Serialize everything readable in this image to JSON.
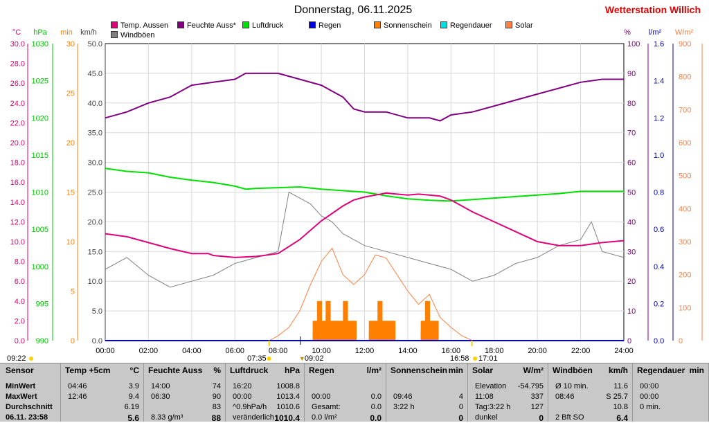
{
  "header": {
    "title": "Donnerstag, 06.11.2025",
    "station": "Wetterstation Willich"
  },
  "legend": [
    {
      "label": "Temp. Aussen",
      "color": "#e0007a"
    },
    {
      "label": "Feuchte Auss*",
      "color": "#800080"
    },
    {
      "label": "Luftdruck",
      "color": "#00e000"
    },
    {
      "label": "Regen",
      "color": "#0000e0"
    },
    {
      "label": "Sonnenschein",
      "color": "#ff8000"
    },
    {
      "label": "Regendauer",
      "color": "#00e0e0"
    },
    {
      "label": "Solar",
      "color": "#ff8040"
    },
    {
      "label": "Windböen",
      "color": "#808080"
    }
  ],
  "axes_units": {
    "temp": "°C",
    "pressure": "hPa",
    "sun": "min",
    "wind": "km/h",
    "humidity": "%",
    "rain": "l/m²",
    "solar": "W/m²"
  },
  "axis_ticks": {
    "temp": [
      "30.0",
      "28.0",
      "26.0",
      "24.0",
      "22.0",
      "20.0",
      "18.0",
      "16.0",
      "14.0",
      "12.0",
      "10.0",
      "8.0",
      "6.0",
      "4.0",
      "2.0",
      "0.0"
    ],
    "pressure": [
      "1030",
      "1025",
      "1020",
      "1015",
      "1010",
      "1005",
      "1000",
      "995",
      "990"
    ],
    "sun": [
      "30",
      "25",
      "20",
      "15",
      "10",
      "5",
      "0"
    ],
    "wind": [
      "50.0",
      "45.0",
      "40.0",
      "35.0",
      "30.0",
      "25.0",
      "20.0",
      "15.0",
      "10.0",
      "5.0",
      "0.0"
    ],
    "humidity": [
      "100",
      "90",
      "80",
      "70",
      "60",
      "50",
      "40",
      "30",
      "20",
      "10",
      "0"
    ],
    "rain": [
      "1.6",
      "1.4",
      "1.2",
      "1.0",
      "0.8",
      "0.6",
      "0.4",
      "0.2",
      "0.0"
    ],
    "solar": [
      "900",
      "800",
      "700",
      "600",
      "500",
      "400",
      "300",
      "200",
      "100",
      "0"
    ],
    "time": [
      "00:00",
      "02:00",
      "04:00",
      "06:00",
      "08:00",
      "10:00",
      "12:00",
      "14:00",
      "16:00",
      "18:00",
      "20:00",
      "22:00",
      "24:00"
    ]
  },
  "sun_events": {
    "moonrise": "09:22",
    "sunrise": "07:35",
    "noon": "09:02",
    "sunset": "16:58",
    "moonset": "17:01"
  },
  "chart_data": {
    "type": "line",
    "x_unit": "hours",
    "xlim": [
      0,
      24
    ],
    "series": [
      {
        "name": "Temp. Aussen",
        "unit": "°C",
        "ylim": [
          0,
          30
        ],
        "x": [
          0,
          1,
          2,
          3,
          4,
          4.77,
          5,
          6,
          7,
          8,
          9,
          10,
          11,
          11.5,
          12,
          12.5,
          13,
          13.5,
          14,
          14.5,
          15,
          15.5,
          16,
          17,
          18,
          19,
          20,
          21,
          22,
          23,
          24
        ],
        "values": [
          10.8,
          10.5,
          9.9,
          9.3,
          8.8,
          8.8,
          8.6,
          8.4,
          8.5,
          8.8,
          10.2,
          12.1,
          13.6,
          14.2,
          14.5,
          14.7,
          14.9,
          14.8,
          14.7,
          14.8,
          14.7,
          14.6,
          14.2,
          13.0,
          12.0,
          11.0,
          10.0,
          9.6,
          9.6,
          9.9,
          10.1
        ]
      },
      {
        "name": "Feuchte Auss*",
        "unit": "%",
        "ylim": [
          0,
          100
        ],
        "x": [
          0,
          1,
          2,
          3,
          4,
          5,
          6,
          6.5,
          7,
          8,
          9,
          10,
          11,
          11.5,
          12,
          13,
          14,
          15,
          15.5,
          16,
          17,
          18,
          19,
          20,
          21,
          22,
          23,
          24
        ],
        "values": [
          75,
          77,
          80,
          82,
          86,
          87,
          88,
          90,
          90,
          90,
          88,
          86,
          82,
          78,
          77,
          77,
          75,
          75,
          74,
          76,
          77,
          79,
          81,
          83,
          85,
          87,
          88,
          88
        ]
      },
      {
        "name": "Luftdruck",
        "unit": "hPa",
        "ylim": [
          990,
          1030
        ],
        "x": [
          0,
          1,
          2,
          3,
          4,
          5,
          6,
          6.5,
          7,
          8,
          9,
          10,
          11,
          12,
          13,
          14,
          15,
          16,
          17,
          18,
          19,
          20,
          21,
          22,
          23,
          24
        ],
        "values": [
          1013.2,
          1012.8,
          1012.6,
          1012.0,
          1011.6,
          1011.3,
          1010.8,
          1010.4,
          1010.5,
          1010.6,
          1010.7,
          1010.4,
          1010.2,
          1010.0,
          1009.5,
          1009.1,
          1008.9,
          1008.8,
          1009.0,
          1009.2,
          1009.4,
          1009.6,
          1009.8,
          1010.1,
          1010.1,
          1010.1
        ]
      },
      {
        "name": "Windböen",
        "unit": "km/h",
        "ylim": [
          0,
          50
        ],
        "x": [
          0,
          1,
          2,
          3,
          4,
          5,
          6,
          7,
          8,
          8.5,
          9,
          9.5,
          10,
          10.5,
          11,
          11.5,
          12,
          13,
          14,
          15,
          16,
          17,
          18,
          19,
          20,
          21,
          22,
          22.5,
          23,
          24
        ],
        "values": [
          12,
          14,
          11,
          9,
          10,
          11,
          13,
          14,
          15,
          25,
          24,
          23,
          21,
          20,
          18,
          17,
          16,
          15,
          14,
          13,
          12,
          10,
          11,
          13,
          14,
          16,
          17,
          20,
          15,
          14
        ]
      },
      {
        "name": "Solar",
        "unit": "W/m²",
        "ylim": [
          0,
          900
        ],
        "x": [
          7.6,
          8,
          8.5,
          9,
          9.5,
          10,
          10.5,
          11,
          11.5,
          12,
          12.5,
          13,
          13.5,
          14,
          14.5,
          15,
          15.5,
          16,
          16.5,
          17
        ],
        "values": [
          0,
          15,
          40,
          90,
          170,
          240,
          280,
          200,
          170,
          200,
          260,
          250,
          200,
          150,
          110,
          140,
          70,
          40,
          15,
          0
        ]
      },
      {
        "name": "Sonnenschein",
        "unit": "min",
        "ylim": [
          0,
          30
        ],
        "x": [
          9.6,
          9.8,
          10.0,
          10.2,
          10.4,
          10.6,
          10.8,
          11.0,
          11.2,
          11.4,
          12.2,
          12.4,
          12.6,
          12.8,
          13.0,
          13.2,
          14.6,
          14.8,
          15.0,
          15.2
        ],
        "values": [
          2,
          4,
          2,
          4,
          2,
          2,
          2,
          4,
          2,
          2,
          2,
          2,
          4,
          2,
          2,
          2,
          2,
          4,
          2,
          2
        ]
      },
      {
        "name": "Regen",
        "unit": "l/m²",
        "ylim": [
          0,
          1.6
        ],
        "x": [
          0,
          24
        ],
        "values": [
          0,
          0
        ]
      }
    ]
  },
  "table": {
    "sensor": {
      "header": "Sensor",
      "rows": [
        "MinWert",
        "MaxWert",
        "Durchschnitt",
        "06.11. 23:58"
      ]
    },
    "temp": {
      "header": "Temp +5cm",
      "unit": "°C",
      "rows": [
        [
          "04:46",
          "3.9"
        ],
        [
          "12:46",
          "9.4"
        ],
        [
          "",
          "6.19"
        ],
        [
          "",
          "5.6"
        ]
      ]
    },
    "humidity": {
      "header": "Feuchte Auss",
      "unit": "%",
      "rows": [
        [
          "14:00",
          "74"
        ],
        [
          "06:30",
          "90"
        ],
        [
          "",
          "83"
        ],
        [
          "8.33 g/m³",
          "88"
        ]
      ]
    },
    "pressure": {
      "header": "Luftdruck",
      "unit": "hPa",
      "rows": [
        [
          "16:20",
          "1008.8"
        ],
        [
          "00:00",
          "1013.4"
        ],
        [
          "^0.9hPa/h",
          "1010.6"
        ],
        [
          "veränderlich",
          "1010.4"
        ]
      ]
    },
    "rain": {
      "header": "Regen",
      "unit": "l/m²",
      "rows": [
        [
          "",
          ""
        ],
        [
          "00:00",
          "0.0"
        ],
        [
          "Gesamt:",
          "0.0"
        ],
        [
          "0.0 l/m²",
          "0.0"
        ]
      ]
    },
    "sun": {
      "header": "Sonnenschein",
      "unit": "min",
      "rows": [
        [
          "",
          ""
        ],
        [
          "09:46",
          "4"
        ],
        [
          "3:22 h",
          "0"
        ],
        [
          "",
          "0"
        ]
      ]
    },
    "solar": {
      "header": "Solar",
      "unit": "W/m²",
      "rows": [
        [
          "Elevation",
          "-54.795"
        ],
        [
          "11:08",
          "337"
        ],
        [
          "Tag:3:22 h",
          "127"
        ],
        [
          "dunkel",
          "0"
        ]
      ]
    },
    "wind": {
      "header": "Windböen",
      "unit": "km/h",
      "rows": [
        [
          "Ø 10 min.",
          "11.6"
        ],
        [
          "08:46",
          "S 25.7"
        ],
        [
          "",
          "10.8"
        ],
        [
          "2 Bft SO",
          "6.4"
        ]
      ]
    },
    "raindur": {
      "header": "Regendauer",
      "unit": "min",
      "rows": [
        [
          "00:00",
          ""
        ],
        [
          "00:00",
          ""
        ],
        [
          "0 min.",
          ""
        ],
        [
          "",
          ""
        ]
      ]
    }
  }
}
